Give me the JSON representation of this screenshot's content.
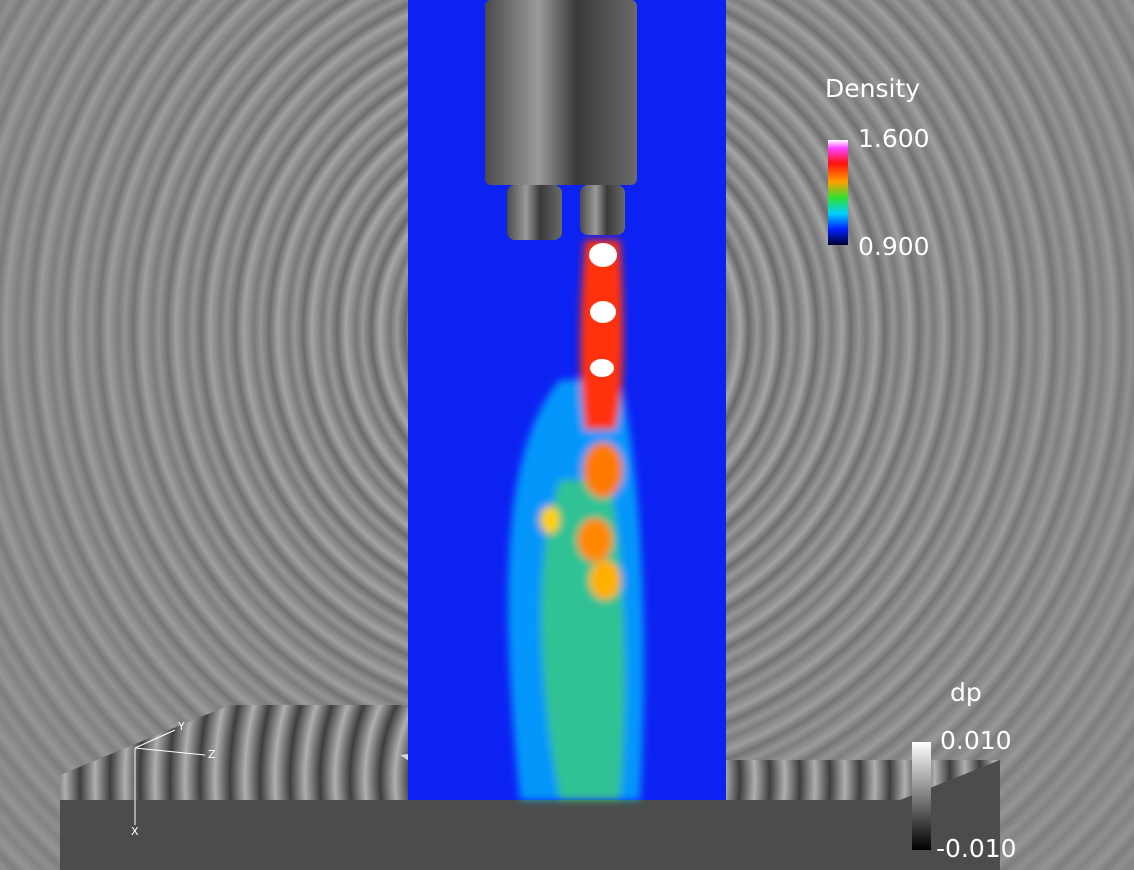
{
  "legends": {
    "density": {
      "title": "Density",
      "max": "1.600",
      "min": "0.900"
    },
    "dp": {
      "title": "dp",
      "max": "0.010",
      "min": "-0.010"
    }
  },
  "axes": {
    "y": "Y",
    "z": "Z",
    "x": "X"
  }
}
